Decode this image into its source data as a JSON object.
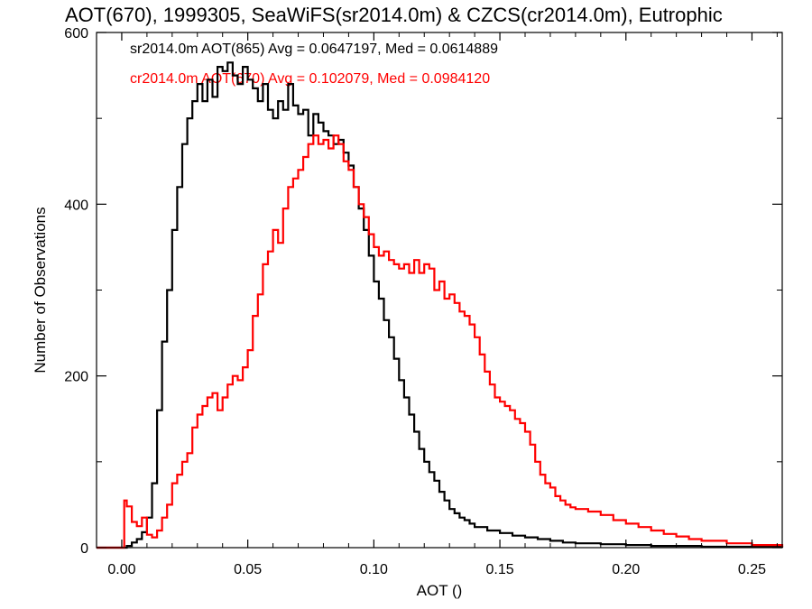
{
  "chart_data": {
    "type": "line",
    "title": "AOT(670), 1999305, SeaWiFS(sr2014.0m) & CZCS(cr2014.0m), Eutrophic",
    "xlabel": "AOT ()",
    "ylabel": "Number of Observations",
    "xlim": [
      -0.01,
      0.262
    ],
    "ylim": [
      0,
      600
    ],
    "x_ticks": [
      0.0,
      0.05,
      0.1,
      0.15,
      0.2,
      0.25
    ],
    "x_tick_labels": [
      "0.00",
      "0.05",
      "0.10",
      "0.15",
      "0.20",
      "0.25"
    ],
    "y_ticks": [
      0,
      200,
      400,
      600
    ],
    "y_tick_labels": [
      "0",
      "200",
      "400",
      "600"
    ],
    "grid": false,
    "legend_placement": "top-left",
    "series": [
      {
        "name": "sr2014.0m AOT(865) Avg = 0.0647197, Med = 0.0614889",
        "color": "#000000",
        "x": [
          -0.01,
          0.0,
          0.002,
          0.004,
          0.006,
          0.008,
          0.01,
          0.012,
          0.014,
          0.016,
          0.018,
          0.02,
          0.022,
          0.024,
          0.026,
          0.028,
          0.03,
          0.032,
          0.034,
          0.036,
          0.038,
          0.04,
          0.042,
          0.044,
          0.046,
          0.048,
          0.05,
          0.052,
          0.054,
          0.056,
          0.058,
          0.06,
          0.062,
          0.064,
          0.066,
          0.068,
          0.07,
          0.072,
          0.074,
          0.076,
          0.078,
          0.08,
          0.082,
          0.084,
          0.086,
          0.088,
          0.09,
          0.092,
          0.094,
          0.096,
          0.098,
          0.1,
          0.102,
          0.104,
          0.106,
          0.108,
          0.11,
          0.112,
          0.114,
          0.116,
          0.118,
          0.12,
          0.122,
          0.124,
          0.126,
          0.128,
          0.13,
          0.132,
          0.134,
          0.136,
          0.138,
          0.14,
          0.145,
          0.15,
          0.155,
          0.16,
          0.165,
          0.17,
          0.175,
          0.18,
          0.19,
          0.2,
          0.21,
          0.22,
          0.23,
          0.24,
          0.25,
          0.262
        ],
        "values": [
          0,
          0,
          2,
          6,
          10,
          18,
          35,
          75,
          160,
          240,
          300,
          370,
          420,
          470,
          500,
          520,
          540,
          520,
          545,
          525,
          560,
          555,
          565,
          550,
          540,
          560,
          545,
          535,
          520,
          540,
          510,
          500,
          520,
          510,
          540,
          515,
          505,
          510,
          480,
          505,
          495,
          485,
          480,
          470,
          475,
          460,
          445,
          420,
          395,
          370,
          340,
          310,
          290,
          265,
          245,
          220,
          195,
          175,
          155,
          135,
          115,
          100,
          88,
          78,
          65,
          55,
          45,
          40,
          35,
          32,
          28,
          24,
          20,
          17,
          14,
          12,
          10,
          8,
          6,
          5,
          4,
          3,
          2,
          2,
          1,
          1,
          1,
          0
        ]
      },
      {
        "name": "cr2014.0m AOT(670) Avg = 0.102079, Med = 0.0984120",
        "color": "#ff0000",
        "x": [
          -0.01,
          0.0,
          0.001,
          0.002,
          0.004,
          0.006,
          0.008,
          0.01,
          0.012,
          0.014,
          0.016,
          0.018,
          0.02,
          0.022,
          0.024,
          0.026,
          0.028,
          0.03,
          0.032,
          0.034,
          0.036,
          0.038,
          0.04,
          0.042,
          0.044,
          0.046,
          0.048,
          0.05,
          0.052,
          0.054,
          0.056,
          0.058,
          0.06,
          0.062,
          0.064,
          0.066,
          0.068,
          0.07,
          0.072,
          0.074,
          0.076,
          0.078,
          0.08,
          0.082,
          0.084,
          0.086,
          0.088,
          0.09,
          0.092,
          0.094,
          0.096,
          0.098,
          0.1,
          0.102,
          0.104,
          0.106,
          0.108,
          0.11,
          0.112,
          0.114,
          0.116,
          0.118,
          0.12,
          0.122,
          0.124,
          0.126,
          0.128,
          0.13,
          0.132,
          0.134,
          0.136,
          0.138,
          0.14,
          0.142,
          0.144,
          0.146,
          0.148,
          0.15,
          0.152,
          0.154,
          0.156,
          0.158,
          0.16,
          0.162,
          0.164,
          0.166,
          0.168,
          0.17,
          0.172,
          0.174,
          0.176,
          0.178,
          0.18,
          0.185,
          0.19,
          0.195,
          0.2,
          0.205,
          0.21,
          0.215,
          0.22,
          0.225,
          0.23,
          0.24,
          0.25,
          0.262
        ],
        "values": [
          0,
          0,
          55,
          48,
          30,
          25,
          35,
          15,
          12,
          20,
          35,
          50,
          75,
          85,
          100,
          110,
          140,
          155,
          165,
          175,
          180,
          160,
          175,
          190,
          200,
          195,
          210,
          230,
          270,
          295,
          330,
          345,
          370,
          355,
          395,
          420,
          430,
          440,
          455,
          470,
          480,
          470,
          475,
          465,
          480,
          470,
          450,
          440,
          420,
          400,
          385,
          365,
          350,
          340,
          345,
          335,
          330,
          325,
          330,
          320,
          335,
          320,
          330,
          325,
          300,
          310,
          290,
          295,
          285,
          275,
          270,
          260,
          245,
          225,
          205,
          190,
          175,
          170,
          165,
          160,
          150,
          145,
          135,
          120,
          100,
          85,
          75,
          70,
          60,
          55,
          50,
          47,
          45,
          42,
          38,
          32,
          28,
          24,
          20,
          16,
          13,
          10,
          8,
          5,
          3,
          1
        ]
      }
    ],
    "annotations": [
      {
        "text": "sr2014.0m AOT(865) Avg = 0.0647197, Med = 0.0614889",
        "color": "#000000"
      },
      {
        "text": "cr2014.0m AOT(670) Avg = 0.102079, Med = 0.0984120",
        "color": "#ff0000"
      }
    ]
  }
}
